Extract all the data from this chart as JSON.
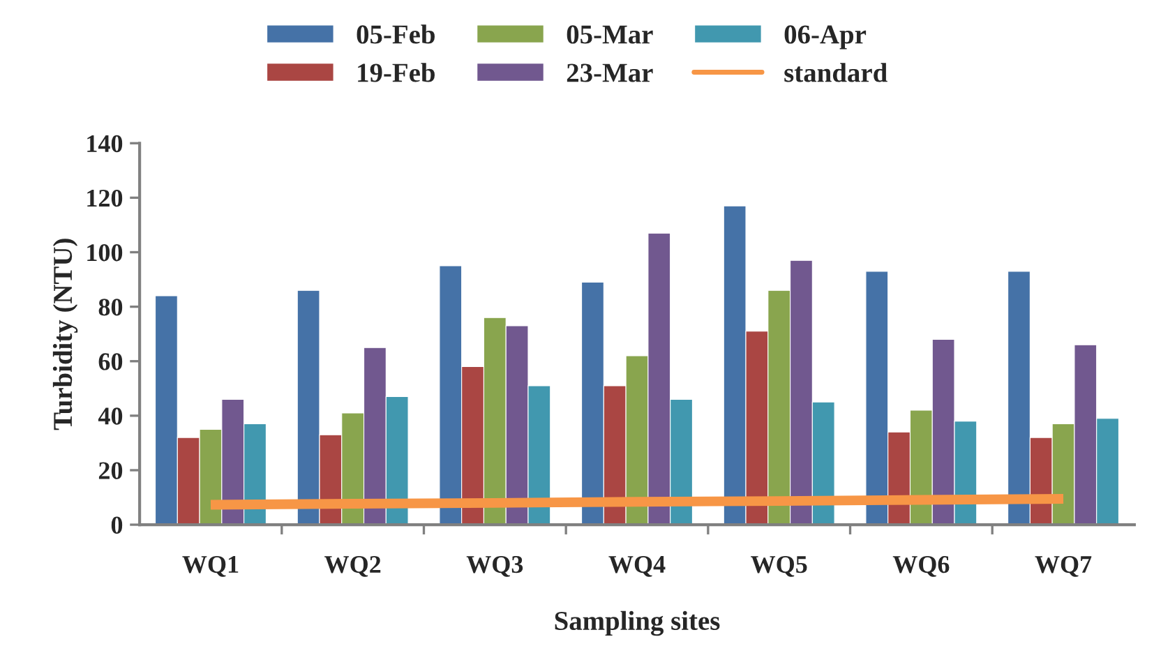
{
  "chart_data": {
    "type": "bar",
    "xlabel": "Sampling sites",
    "ylabel": "Turbidity (NTU)",
    "categories": [
      "WQ1",
      "WQ2",
      "WQ3",
      "WQ4",
      "WQ5",
      "WQ6",
      "WQ7"
    ],
    "series": [
      {
        "name": "05-Feb",
        "color": "#4572a7",
        "values": [
          84,
          86,
          95,
          89,
          117,
          93,
          93
        ]
      },
      {
        "name": "19-Feb",
        "color": "#aa4643",
        "values": [
          32,
          33,
          58,
          51,
          71,
          34,
          32
        ]
      },
      {
        "name": "05-Mar",
        "color": "#89a54e",
        "values": [
          35,
          41,
          76,
          62,
          86,
          42,
          37
        ]
      },
      {
        "name": "23-Mar",
        "color": "#71588f",
        "values": [
          46,
          65,
          73,
          107,
          97,
          68,
          66
        ]
      },
      {
        "name": "06-Apr",
        "color": "#4198af",
        "values": [
          37,
          47,
          51,
          46,
          45,
          38,
          39
        ]
      },
      {
        "name": "standard",
        "type": "line",
        "color": "#f79646",
        "values": [
          7.3,
          7.7,
          8.0,
          8.4,
          8.7,
          9.1,
          9.5
        ]
      }
    ],
    "ylim": [
      0,
      140
    ],
    "yticks": [
      0,
      20,
      40,
      60,
      80,
      100,
      120,
      140
    ],
    "grid": false,
    "legend": "top"
  }
}
